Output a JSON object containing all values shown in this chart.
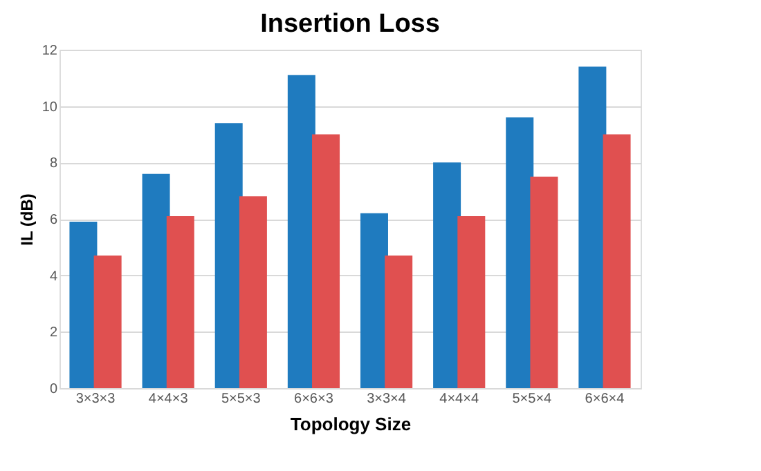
{
  "chart_data": {
    "type": "bar",
    "title": "Insertion Loss",
    "xlabel": "Topology Size",
    "ylabel": "IL (dB)",
    "categories": [
      "3×3×3",
      "4×4×3",
      "5×5×3",
      "6×6×3",
      "3×3×4",
      "4×4×4",
      "5×5×4",
      "6×6×4"
    ],
    "series": [
      {
        "color": "#1f7bbf",
        "values": [
          5.9,
          7.6,
          9.4,
          11.1,
          6.2,
          8.0,
          9.6,
          11.4
        ]
      },
      {
        "color": "#e05050",
        "values": [
          4.7,
          6.1,
          6.8,
          9.0,
          4.7,
          6.1,
          7.5,
          9.0
        ]
      }
    ],
    "ylim": [
      0,
      12
    ],
    "yticks": [
      0,
      2,
      4,
      6,
      8,
      10,
      12
    ],
    "grid": "y",
    "legend": false
  }
}
